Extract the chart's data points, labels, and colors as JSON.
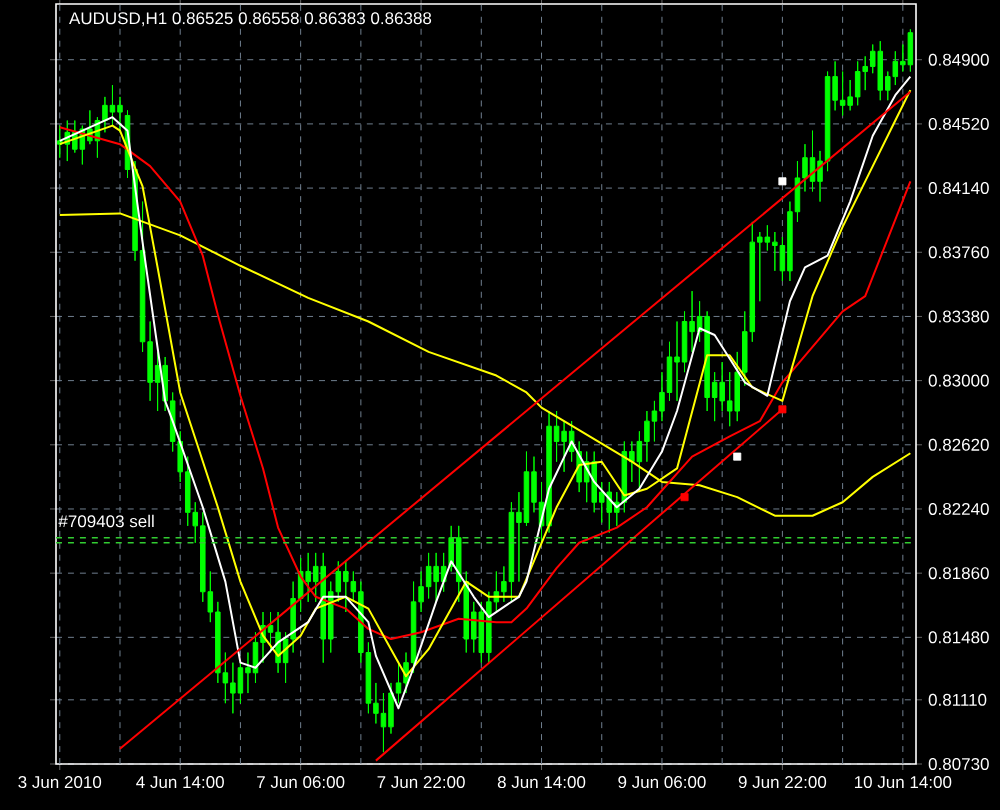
{
  "chart_data": {
    "type": "candlestick",
    "title": "AUDUSD,H1 0.86525 0.86558 0.86383 0.86388",
    "color": "#00ff00",
    "categories": [
      "3 Jun 2010",
      null,
      null,
      null,
      null,
      null,
      null,
      null,
      null,
      null,
      null,
      null,
      null,
      null,
      null,
      null,
      "4 Jun 14:00",
      null,
      null,
      null,
      null,
      null,
      null,
      null,
      null,
      null,
      null,
      null,
      null,
      null,
      null,
      null,
      "7 Jun 06:00",
      null,
      null,
      null,
      null,
      null,
      null,
      null,
      null,
      null,
      null,
      null,
      null,
      null,
      null,
      null,
      "7 Jun 22:00",
      null,
      null,
      null,
      null,
      null,
      null,
      null,
      null,
      null,
      null,
      null,
      null,
      null,
      null,
      null,
      "8 Jun 14:00",
      null,
      null,
      null,
      null,
      null,
      null,
      null,
      null,
      null,
      null,
      null,
      null,
      null,
      null,
      null,
      "9 Jun 06:00",
      null,
      null,
      null,
      null,
      null,
      null,
      null,
      null,
      null,
      null,
      null,
      null,
      null,
      null,
      null,
      "9 Jun 22:00",
      null,
      null,
      null,
      null,
      null,
      null,
      null,
      null,
      null,
      null,
      null,
      null,
      null,
      null,
      null,
      "10 Jun 14:00",
      null
    ],
    "ohlc": [
      [
        0.8442,
        0.8451,
        0.8432,
        0.844
      ],
      [
        0.844,
        0.8454,
        0.843,
        0.8447
      ],
      [
        0.8447,
        0.8454,
        0.8435,
        0.8437
      ],
      [
        0.8437,
        0.8451,
        0.8428,
        0.8449
      ],
      [
        0.8449,
        0.846,
        0.844,
        0.8442
      ],
      [
        0.8442,
        0.8456,
        0.8432,
        0.8454
      ],
      [
        0.8454,
        0.8468,
        0.8447,
        0.8463
      ],
      [
        0.8463,
        0.8475,
        0.8451,
        0.8459
      ],
      [
        0.8459,
        0.8468,
        0.8447,
        0.8463
      ],
      [
        0.8457,
        0.846,
        0.842,
        0.8425
      ],
      [
        0.8425,
        0.843,
        0.8371,
        0.8377
      ],
      [
        0.8377,
        0.8406,
        0.8317,
        0.8323
      ],
      [
        0.8323,
        0.8335,
        0.8288,
        0.8299
      ],
      [
        0.8299,
        0.8317,
        0.8282,
        0.8309
      ],
      [
        0.8309,
        0.8314,
        0.8282,
        0.8288
      ],
      [
        0.8288,
        0.8293,
        0.8258,
        0.8264
      ],
      [
        0.8264,
        0.827,
        0.824,
        0.8246
      ],
      [
        0.8246,
        0.8255,
        0.8214,
        0.8222
      ],
      [
        0.8222,
        0.8228,
        0.8204,
        0.8214
      ],
      [
        0.8214,
        0.8222,
        0.8169,
        0.8175
      ],
      [
        0.8175,
        0.8187,
        0.8157,
        0.8163
      ],
      [
        0.8163,
        0.8169,
        0.8121,
        0.8127
      ],
      [
        0.8127,
        0.8139,
        0.8109,
        0.8121
      ],
      [
        0.8121,
        0.8133,
        0.8103,
        0.8115
      ],
      [
        0.8115,
        0.8133,
        0.8109,
        0.813
      ],
      [
        0.813,
        0.8139,
        0.8115,
        0.8127
      ],
      [
        0.8127,
        0.8151,
        0.8121,
        0.8145
      ],
      [
        0.8145,
        0.8163,
        0.8133,
        0.8155
      ],
      [
        0.8155,
        0.8163,
        0.8139,
        0.8151
      ],
      [
        0.8151,
        0.8163,
        0.8127,
        0.8133
      ],
      [
        0.8133,
        0.8151,
        0.8121,
        0.8147
      ],
      [
        0.8147,
        0.8181,
        0.8139,
        0.8171
      ],
      [
        0.8171,
        0.8195,
        0.8163,
        0.8187
      ],
      [
        0.8187,
        0.8198,
        0.8169,
        0.8181
      ],
      [
        0.8181,
        0.8198,
        0.8169,
        0.819
      ],
      [
        0.819,
        0.8198,
        0.8133,
        0.8147
      ],
      [
        0.8147,
        0.8181,
        0.8139,
        0.8175
      ],
      [
        0.8175,
        0.8193,
        0.8169,
        0.8187
      ],
      [
        0.8187,
        0.8193,
        0.8163,
        0.8181
      ],
      [
        0.8181,
        0.8187,
        0.8169,
        0.8175
      ],
      [
        0.8175,
        0.8181,
        0.8133,
        0.8139
      ],
      [
        0.8139,
        0.8145,
        0.8103,
        0.8109
      ],
      [
        0.8109,
        0.8121,
        0.8097,
        0.8103
      ],
      [
        0.8103,
        0.8115,
        0.808,
        0.8095
      ],
      [
        0.8095,
        0.8121,
        0.8091,
        0.8115
      ],
      [
        0.8115,
        0.8133,
        0.8109,
        0.8121
      ],
      [
        0.8121,
        0.8139,
        0.8115,
        0.8133
      ],
      [
        0.8133,
        0.8181,
        0.8127,
        0.8169
      ],
      [
        0.8169,
        0.8187,
        0.8163,
        0.8178
      ],
      [
        0.8178,
        0.8198,
        0.8171,
        0.819
      ],
      [
        0.819,
        0.8198,
        0.8169,
        0.8181
      ],
      [
        0.8181,
        0.8198,
        0.8175,
        0.819
      ],
      [
        0.819,
        0.8214,
        0.8187,
        0.8207
      ],
      [
        0.8207,
        0.8214,
        0.8169,
        0.8181
      ],
      [
        0.8181,
        0.8187,
        0.8139,
        0.8147
      ],
      [
        0.8147,
        0.8169,
        0.8139,
        0.8163
      ],
      [
        0.8163,
        0.8169,
        0.8133,
        0.8139
      ],
      [
        0.8139,
        0.8175,
        0.8133,
        0.8169
      ],
      [
        0.8169,
        0.8187,
        0.8163,
        0.8175
      ],
      [
        0.8175,
        0.819,
        0.8169,
        0.8181
      ],
      [
        0.8181,
        0.8228,
        0.8169,
        0.8222
      ],
      [
        0.8222,
        0.8234,
        0.8181,
        0.8216
      ],
      [
        0.8216,
        0.8258,
        0.8214,
        0.8246
      ],
      [
        0.8246,
        0.8255,
        0.8222,
        0.8228
      ],
      [
        0.8228,
        0.824,
        0.8204,
        0.8214
      ],
      [
        0.8214,
        0.8282,
        0.821,
        0.8273
      ],
      [
        0.8273,
        0.8282,
        0.8252,
        0.8264
      ],
      [
        0.8264,
        0.8276,
        0.8246,
        0.827
      ],
      [
        0.827,
        0.8276,
        0.8252,
        0.8258
      ],
      [
        0.8258,
        0.8264,
        0.8234,
        0.824
      ],
      [
        0.824,
        0.8258,
        0.8228,
        0.8252
      ],
      [
        0.8252,
        0.8258,
        0.8222,
        0.8228
      ],
      [
        0.8228,
        0.824,
        0.8216,
        0.8234
      ],
      [
        0.8234,
        0.824,
        0.821,
        0.8222
      ],
      [
        0.8222,
        0.8234,
        0.8214,
        0.8228
      ],
      [
        0.8228,
        0.8264,
        0.8222,
        0.8258
      ],
      [
        0.8258,
        0.8264,
        0.824,
        0.8252
      ],
      [
        0.8252,
        0.827,
        0.8234,
        0.8264
      ],
      [
        0.8264,
        0.8282,
        0.8252,
        0.8276
      ],
      [
        0.8276,
        0.8288,
        0.8264,
        0.8282
      ],
      [
        0.8282,
        0.8305,
        0.8276,
        0.8293
      ],
      [
        0.8293,
        0.8323,
        0.8288,
        0.8314
      ],
      [
        0.8314,
        0.8335,
        0.8288,
        0.8311
      ],
      [
        0.8311,
        0.8341,
        0.8305,
        0.8335
      ],
      [
        0.8335,
        0.8353,
        0.8317,
        0.8329
      ],
      [
        0.8329,
        0.8347,
        0.8323,
        0.8338
      ],
      [
        0.8338,
        0.8341,
        0.8282,
        0.829
      ],
      [
        0.829,
        0.8305,
        0.8276,
        0.8299
      ],
      [
        0.8299,
        0.8311,
        0.8282,
        0.8288
      ],
      [
        0.8288,
        0.8305,
        0.8273,
        0.8282
      ],
      [
        0.8282,
        0.8317,
        0.8276,
        0.8305
      ],
      [
        0.8305,
        0.8341,
        0.8297,
        0.8329
      ],
      [
        0.8329,
        0.8394,
        0.8323,
        0.8382
      ],
      [
        0.8382,
        0.8388,
        0.8347,
        0.8385
      ],
      [
        0.8385,
        0.8392,
        0.8377,
        0.8382
      ],
      [
        0.8382,
        0.8388,
        0.8365,
        0.838
      ],
      [
        0.838,
        0.8385,
        0.8359,
        0.8365
      ],
      [
        0.8365,
        0.8406,
        0.8359,
        0.84
      ],
      [
        0.84,
        0.843,
        0.8394,
        0.842
      ],
      [
        0.842,
        0.844,
        0.8412,
        0.8432
      ],
      [
        0.8432,
        0.8448,
        0.8412,
        0.8418
      ],
      [
        0.8418,
        0.8436,
        0.8406,
        0.843
      ],
      [
        0.843,
        0.8483,
        0.8424,
        0.848
      ],
      [
        0.848,
        0.8489,
        0.846,
        0.8466
      ],
      [
        0.8466,
        0.8483,
        0.8457,
        0.8463
      ],
      [
        0.8463,
        0.8478,
        0.846,
        0.8468
      ],
      [
        0.8468,
        0.8489,
        0.8463,
        0.8483
      ],
      [
        0.8483,
        0.8492,
        0.8472,
        0.8486
      ],
      [
        0.8486,
        0.8499,
        0.8482,
        0.8495
      ],
      [
        0.8495,
        0.8501,
        0.8466,
        0.8472
      ],
      [
        0.8472,
        0.8483,
        0.8466,
        0.848
      ],
      [
        0.848,
        0.8495,
        0.8475,
        0.8489
      ],
      [
        0.8489,
        0.8499,
        0.8483,
        0.8487
      ],
      [
        0.8487,
        0.8508,
        0.8483,
        0.8506
      ]
    ],
    "series": [
      {
        "type": "line",
        "color": "#ffff00",
        "values": [
          0.8398,
          null,
          null,
          null,
          null,
          null,
          null,
          null,
          0.8399,
          null,
          null,
          null,
          null,
          null,
          null,
          null,
          0.8386,
          null,
          null,
          null,
          null,
          null,
          null,
          null,
          0.8368,
          null,
          null,
          null,
          null,
          null,
          null,
          null,
          null,
          0.8349,
          null,
          null,
          null,
          null,
          null,
          null,
          null,
          0.8335,
          null,
          null,
          null,
          null,
          null,
          null,
          null,
          0.8317,
          null,
          null,
          null,
          null,
          null,
          null,
          null,
          null,
          0.8303,
          null,
          null,
          null,
          0.8293,
          null,
          0.8284,
          null,
          null,
          null,
          null,
          null,
          null,
          null,
          null,
          null,
          null,
          null,
          0.8252,
          null,
          null,
          null,
          0.824,
          null,
          null,
          null,
          null,
          0.8238,
          null,
          null,
          null,
          null,
          0.8231,
          null,
          null,
          null,
          null,
          0.822,
          null,
          null,
          null,
          null,
          0.822,
          null,
          null,
          null,
          0.8228,
          null,
          null,
          null,
          0.8243,
          null,
          null,
          null,
          null,
          0.8257
        ]
      },
      {
        "type": "line",
        "color": "#ff0000",
        "values": [
          0.845,
          null,
          null,
          null,
          null,
          null,
          null,
          null,
          0.844,
          null,
          null,
          null,
          0.8427,
          null,
          null,
          null,
          0.8406,
          null,
          null,
          0.8374,
          null,
          0.8339,
          null,
          null,
          0.8291,
          null,
          null,
          0.8248,
          null,
          0.8213,
          null,
          null,
          0.8184,
          null,
          0.8172,
          null,
          null,
          null,
          0.8165,
          null,
          null,
          0.8153,
          null,
          null,
          0.8147,
          null,
          null,
          null,
          0.8151,
          null,
          null,
          null,
          null,
          0.8159,
          null,
          null,
          null,
          null,
          0.8157,
          null,
          0.8157,
          null,
          0.8165,
          null,
          null,
          null,
          0.8189,
          null,
          null,
          0.8204,
          null,
          null,
          null,
          null,
          0.8213,
          null,
          null,
          null,
          0.8225,
          null,
          null,
          null,
          null,
          null,
          0.8255,
          null,
          null,
          null,
          null,
          0.8267,
          null,
          null,
          null,
          0.8276,
          null,
          null,
          0.8299,
          null,
          null,
          null,
          null,
          null,
          null,
          null,
          0.8341,
          null,
          null,
          0.835,
          null,
          null,
          null,
          null,
          null,
          0.8418
        ]
      },
      {
        "type": "line",
        "color": "#ffff00",
        "values": [
          0.844,
          null,
          null,
          null,
          null,
          null,
          null,
          0.8451,
          0.8448,
          null,
          null,
          0.8415,
          null,
          0.8367,
          null,
          null,
          0.8293,
          null,
          null,
          null,
          null,
          0.8225,
          null,
          null,
          0.8181,
          null,
          null,
          0.8149,
          null,
          0.8137,
          null,
          null,
          0.8149,
          null,
          0.8165,
          null,
          null,
          null,
          0.8172,
          null,
          null,
          0.8165,
          null,
          null,
          0.8141,
          null,
          0.8125,
          null,
          null,
          0.8141,
          null,
          null,
          null,
          null,
          0.8181,
          null,
          null,
          0.8172,
          null,
          null,
          null,
          0.8172,
          null,
          null,
          null,
          null,
          0.8225,
          null,
          null,
          0.825,
          null,
          null,
          0.8252,
          null,
          null,
          0.8232,
          null,
          null,
          0.8236,
          null,
          null,
          null,
          0.8248,
          null,
          null,
          null,
          0.8315,
          null,
          null,
          0.8315,
          null,
          null,
          0.8296,
          null,
          null,
          null,
          0.8288,
          null,
          null,
          null,
          0.835,
          null,
          null,
          null,
          0.8391,
          null,
          null,
          0.8418,
          null,
          null,
          null,
          0.8454,
          null,
          0.8472
        ]
      },
      {
        "type": "line",
        "color": "#ffffff",
        "values": [
          0.8442,
          null,
          null,
          null,
          null,
          null,
          null,
          0.8456,
          null,
          0.8448,
          null,
          0.8382,
          null,
          null,
          0.8288,
          0.8276,
          null,
          null,
          null,
          0.8225,
          null,
          null,
          0.8181,
          null,
          0.8133,
          null,
          0.813,
          null,
          null,
          0.8145,
          null,
          null,
          null,
          0.8157,
          null,
          0.8172,
          null,
          null,
          0.8172,
          null,
          null,
          0.8157,
          0.8137,
          null,
          null,
          0.8106,
          null,
          0.813,
          null,
          null,
          0.8169,
          null,
          0.8193,
          null,
          null,
          0.8172,
          null,
          0.816,
          null,
          null,
          null,
          0.8172,
          0.8181,
          null,
          null,
          0.8236,
          null,
          null,
          0.8264,
          null,
          null,
          0.824,
          null,
          null,
          0.8225,
          null,
          null,
          0.8236,
          null,
          null,
          0.8258,
          null,
          0.8282,
          null,
          null,
          0.8331,
          null,
          0.8327,
          null,
          null,
          null,
          0.8299,
          null,
          null,
          0.8291,
          null,
          null,
          0.8347,
          null,
          0.8367,
          null,
          null,
          0.8374,
          null,
          null,
          0.8406,
          null,
          null,
          0.8445,
          null,
          null,
          0.8469,
          null,
          0.848
        ]
      },
      {
        "type": "line",
        "color": "#ff0000",
        "values": [
          null,
          null,
          null,
          null,
          null,
          null,
          null,
          null,
          0.8082,
          null,
          null,
          null,
          null,
          null,
          null,
          null,
          null,
          null,
          null,
          null,
          null,
          null,
          null,
          null,
          null,
          null,
          null,
          null,
          null,
          null,
          null,
          null,
          null,
          null,
          null,
          null,
          null,
          null,
          null,
          null,
          null,
          null,
          null,
          null,
          null,
          null,
          null,
          null,
          null,
          null,
          null,
          null,
          null,
          null,
          null,
          null,
          null,
          null,
          null,
          null,
          null,
          null,
          null,
          null,
          null,
          null,
          null,
          null,
          null,
          null,
          null,
          null,
          null,
          null,
          null,
          null,
          null,
          null,
          null,
          null,
          null,
          null,
          null,
          null,
          null,
          null,
          null,
          null,
          null,
          null,
          null,
          null,
          null,
          null,
          null,
          null,
          null,
          null,
          null,
          null,
          null,
          null,
          null,
          null,
          null,
          null,
          null,
          null,
          null,
          null,
          null,
          null,
          null,
          0.8471
        ]
      },
      {
        "type": "line",
        "color": "#ff0000",
        "values": [
          null,
          null,
          null,
          null,
          null,
          null,
          null,
          null,
          null,
          null,
          null,
          null,
          null,
          null,
          null,
          null,
          null,
          null,
          null,
          null,
          null,
          null,
          null,
          null,
          null,
          null,
          null,
          null,
          null,
          null,
          null,
          null,
          null,
          null,
          null,
          null,
          null,
          null,
          null,
          null,
          null,
          null,
          0.8075,
          null,
          null,
          null,
          null,
          null,
          null,
          null,
          null,
          null,
          null,
          null,
          null,
          null,
          null,
          null,
          null,
          null,
          null,
          null,
          null,
          null,
          null,
          null,
          null,
          null,
          null,
          null,
          null,
          null,
          null,
          null,
          null,
          null,
          null,
          null,
          null,
          null,
          null,
          null,
          null,
          null,
          null,
          null,
          null,
          null,
          null,
          null,
          null,
          null,
          null,
          null,
          null,
          null,
          0.8283,
          null,
          null,
          null,
          null,
          null,
          null,
          null,
          null,
          null,
          null,
          null,
          null,
          null,
          null,
          null,
          null,
          null
        ]
      },
      {
        "type": "scatter",
        "marker": "square",
        "color": "#ffffff",
        "values": [
          null,
          null,
          null,
          null,
          null,
          null,
          null,
          null,
          null,
          null,
          null,
          null,
          null,
          null,
          null,
          null,
          null,
          null,
          null,
          null,
          null,
          null,
          null,
          null,
          null,
          null,
          null,
          null,
          null,
          null,
          null,
          null,
          null,
          null,
          null,
          null,
          null,
          null,
          null,
          null,
          null,
          null,
          null,
          null,
          null,
          null,
          null,
          null,
          null,
          null,
          null,
          null,
          null,
          null,
          null,
          null,
          null,
          null,
          null,
          null,
          null,
          null,
          null,
          null,
          null,
          null,
          null,
          null,
          null,
          null,
          null,
          null,
          null,
          null,
          null,
          null,
          null,
          null,
          null,
          null,
          null,
          null,
          null,
          null,
          null,
          null,
          null,
          null,
          null,
          null,
          0.8255,
          null,
          null,
          null,
          null,
          null,
          0.8418,
          null,
          null,
          null,
          null,
          null,
          null,
          null,
          null,
          null,
          null,
          null,
          null,
          null,
          null,
          null,
          null,
          null
        ]
      },
      {
        "type": "scatter",
        "marker": "square",
        "color": "#ff0000",
        "values": [
          null,
          null,
          null,
          null,
          null,
          null,
          null,
          null,
          null,
          null,
          null,
          null,
          null,
          null,
          null,
          null,
          null,
          null,
          null,
          null,
          null,
          null,
          null,
          null,
          null,
          null,
          null,
          null,
          null,
          null,
          null,
          null,
          null,
          null,
          null,
          null,
          null,
          null,
          null,
          null,
          null,
          null,
          null,
          null,
          null,
          null,
          null,
          null,
          null,
          null,
          null,
          null,
          null,
          null,
          null,
          null,
          null,
          null,
          null,
          null,
          null,
          null,
          null,
          null,
          null,
          null,
          null,
          null,
          null,
          null,
          null,
          null,
          null,
          null,
          null,
          null,
          null,
          null,
          null,
          null,
          null,
          null,
          null,
          0.8231,
          null,
          null,
          null,
          null,
          null,
          null,
          null,
          null,
          null,
          null,
          null,
          null,
          0.8283,
          null,
          null,
          null,
          null,
          null,
          null,
          null,
          null,
          null,
          null,
          null,
          null,
          null,
          null,
          null,
          null,
          null
        ]
      }
    ],
    "ref_lines": [
      {
        "axis": "y",
        "value": 0.8207,
        "label": "#709403 sell",
        "color": "#32cd32",
        "line_style": "dashed"
      },
      {
        "axis": "y",
        "value": 0.8204,
        "color": "#32cd32",
        "line_style": "dashed"
      }
    ],
    "ylim": [
      0.8073,
      0.8523
    ],
    "yticks": [
      {
        "value": 0.8073,
        "label": "0.80730"
      },
      {
        "value": 0.8111,
        "label": "0.81110"
      },
      {
        "value": 0.8148,
        "label": "0.81480"
      },
      {
        "value": 0.8186,
        "label": "0.81860"
      },
      {
        "value": 0.8224,
        "label": "0.82240"
      },
      {
        "value": 0.8262,
        "label": "0.82620"
      },
      {
        "value": 0.83,
        "label": "0.83000"
      },
      {
        "value": 0.8338,
        "label": "0.83380"
      },
      {
        "value": 0.8376,
        "label": "0.83760"
      },
      {
        "value": 0.8414,
        "label": "0.84140"
      },
      {
        "value": 0.8452,
        "label": "0.84520"
      },
      {
        "value": 0.849,
        "label": "0.84900"
      }
    ],
    "grid": true
  }
}
